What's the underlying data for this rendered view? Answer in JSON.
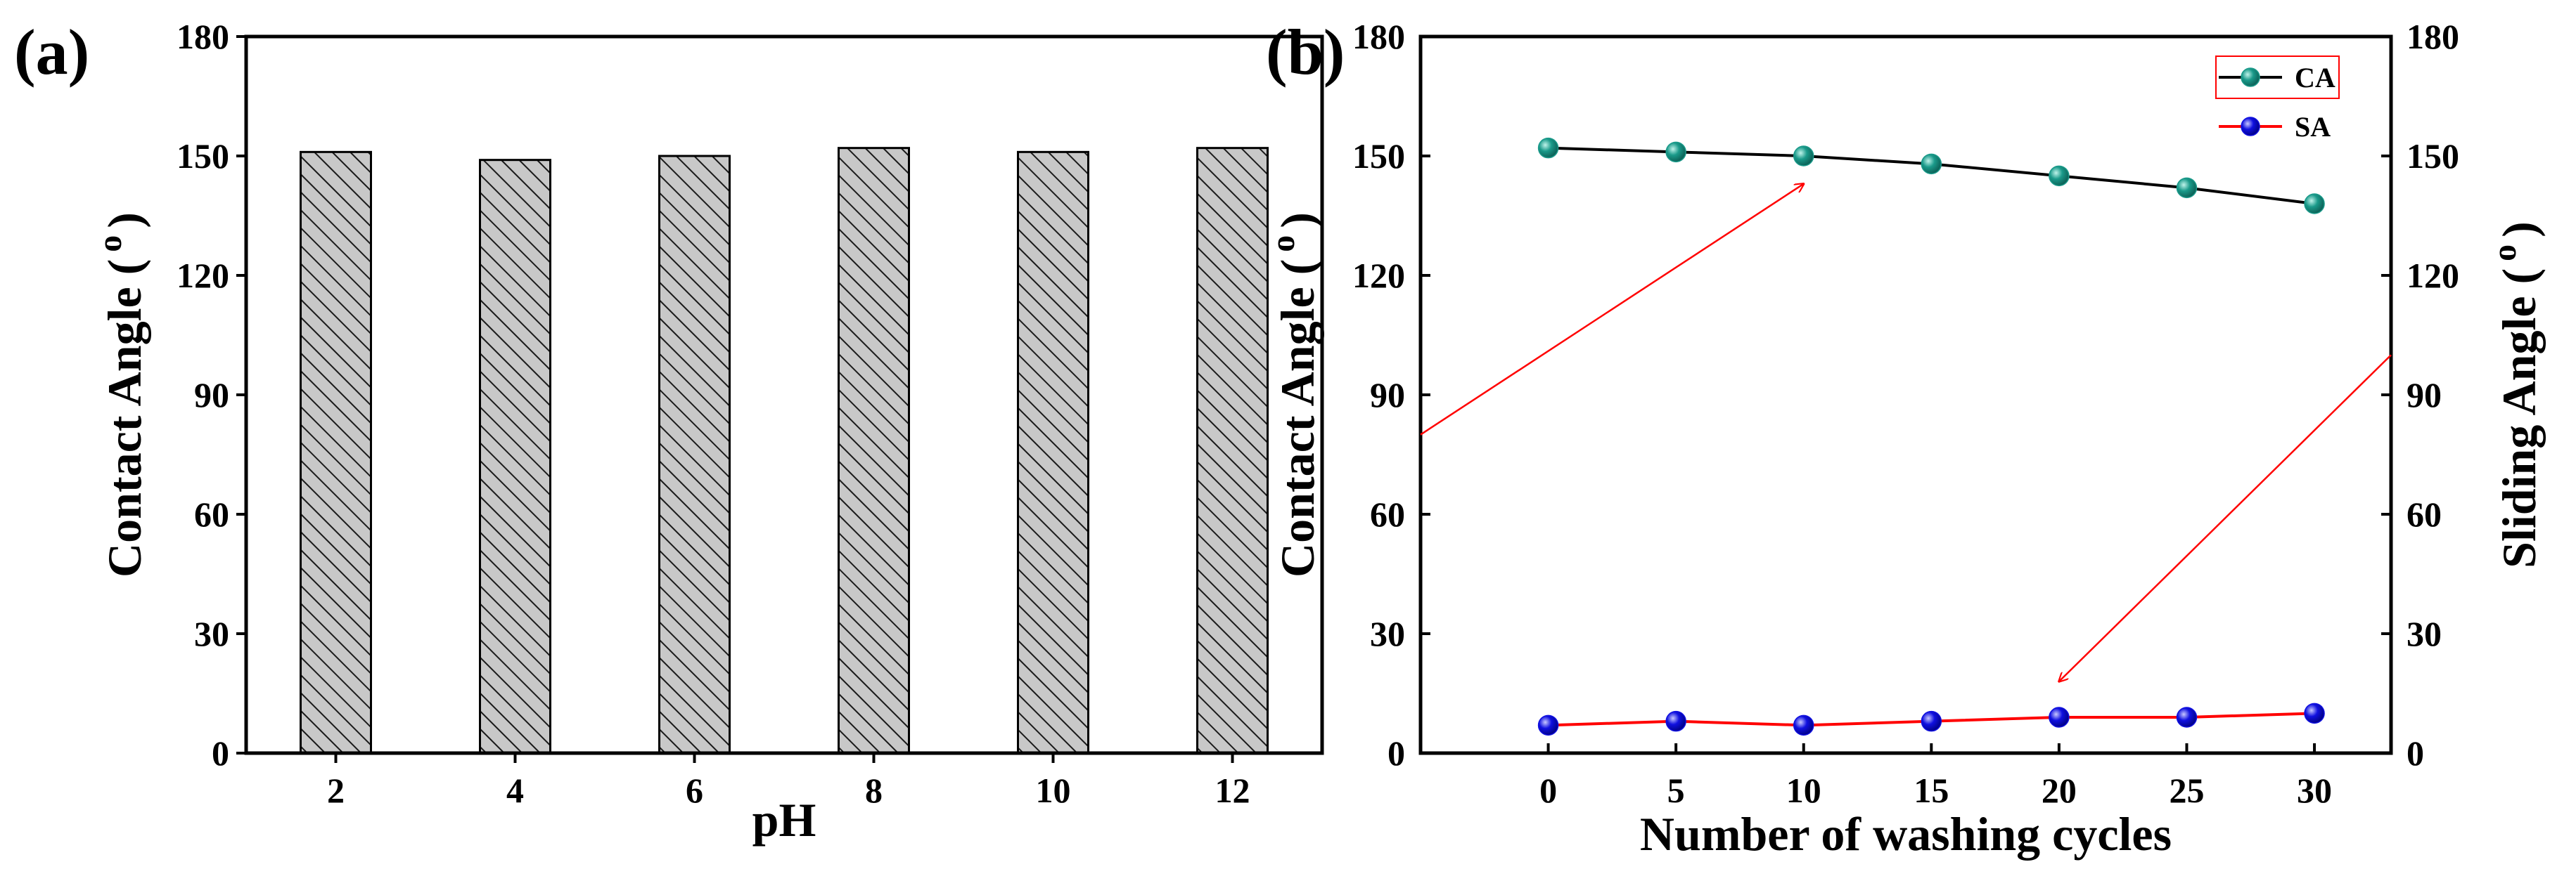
{
  "figure": {
    "panel_a_label": "(a)",
    "panel_b_label": "(b)"
  },
  "chart_data": [
    {
      "type": "bar",
      "panel": "(a)",
      "title": "",
      "xlabel": "pH",
      "ylabel": "Contact Angle ( o )",
      "ylabel_text": "Contact Angle (",
      "ylabel_degree": "o",
      "ylabel_close": ")",
      "categories": [
        "2",
        "4",
        "6",
        "8",
        "10",
        "12"
      ],
      "values": [
        151,
        149,
        150,
        152,
        151,
        152
      ],
      "ylim": [
        0,
        180
      ],
      "yticks": [
        "0",
        "30",
        "60",
        "90",
        "120",
        "150",
        "180"
      ],
      "bar_color": "#c8c8c8",
      "hatch": "diagonal"
    },
    {
      "type": "line",
      "panel": "(b)",
      "title": "",
      "xlabel": "Number of washing cycles",
      "ylabel": "Contact Angle ( o )",
      "ylabel_text": "Contact Angle (",
      "ylabel_degree": "o",
      "ylabel_close": ")",
      "y2label": "Sliding Angle ( o )",
      "y2label_text": "Sliding Angle (",
      "y2label_degree": "o",
      "y2label_close": ")",
      "x": [
        0,
        5,
        10,
        15,
        20,
        25,
        30
      ],
      "xticks": [
        "0",
        "5",
        "10",
        "15",
        "20",
        "25",
        "30"
      ],
      "xlim": [
        -5,
        33
      ],
      "ylim": [
        0,
        180
      ],
      "yticks": [
        "0",
        "30",
        "60",
        "90",
        "120",
        "150",
        "180"
      ],
      "y2ticks": [
        "0",
        "30",
        "60",
        "90",
        "120",
        "150",
        "180"
      ],
      "series": [
        {
          "name": "CA",
          "axis": "left",
          "values": [
            152,
            151,
            150,
            148,
            145,
            142,
            138
          ],
          "line_color": "#000000",
          "marker_color": "#1a9a8a"
        },
        {
          "name": "SA",
          "axis": "right",
          "values": [
            7,
            8,
            7,
            8,
            9,
            9,
            10
          ],
          "line_color": "#ff0000",
          "marker_color": "#1010e0"
        }
      ],
      "legend": {
        "position": "top-right",
        "entries": [
          "CA",
          "SA"
        ]
      },
      "annotations": [
        {
          "type": "arrow",
          "color": "#ff0000",
          "from": [
            -5,
            80
          ],
          "to": [
            10,
            143
          ],
          "axis": "left"
        },
        {
          "type": "arrow",
          "color": "#ff0000",
          "from": [
            33,
            100
          ],
          "to": [
            20,
            18
          ],
          "axis": "right"
        }
      ]
    }
  ]
}
